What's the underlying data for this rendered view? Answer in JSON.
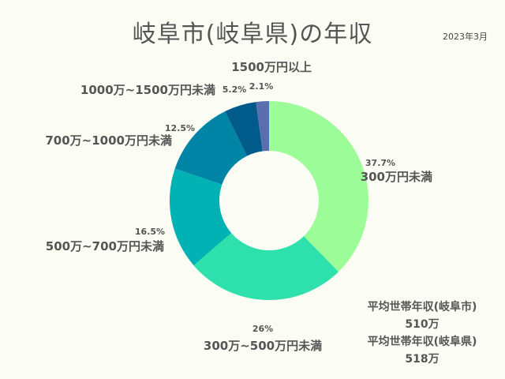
{
  "title": "岐阜市(岐阜県)の年収",
  "date": "2023年3月",
  "averages": [
    {
      "label": "平均世帯年収(岐阜市)",
      "value": "510万"
    },
    {
      "label": "平均世帯年収(岐阜県)",
      "value": "518万"
    }
  ],
  "chart_data": {
    "type": "pie",
    "donut": true,
    "title": "岐阜市(岐阜県)の年収",
    "categories": [
      "300万円未満",
      "300万~500万円未満",
      "500万~700万円未満",
      "700万~1000万円未満",
      "1000万~1500万円未満",
      "1500万円以上"
    ],
    "values": [
      37.7,
      26,
      16.5,
      12.5,
      5.2,
      2.1
    ],
    "value_labels": [
      "37.7%",
      "26%",
      "16.5%",
      "12.5%",
      "5.2%",
      "2.1%"
    ],
    "colors": [
      "#9cfd98",
      "#2de0ac",
      "#00b2b4",
      "#0085a7",
      "#005a8a",
      "#5a6fb0"
    ],
    "start": "top",
    "direction": "clockwise"
  }
}
